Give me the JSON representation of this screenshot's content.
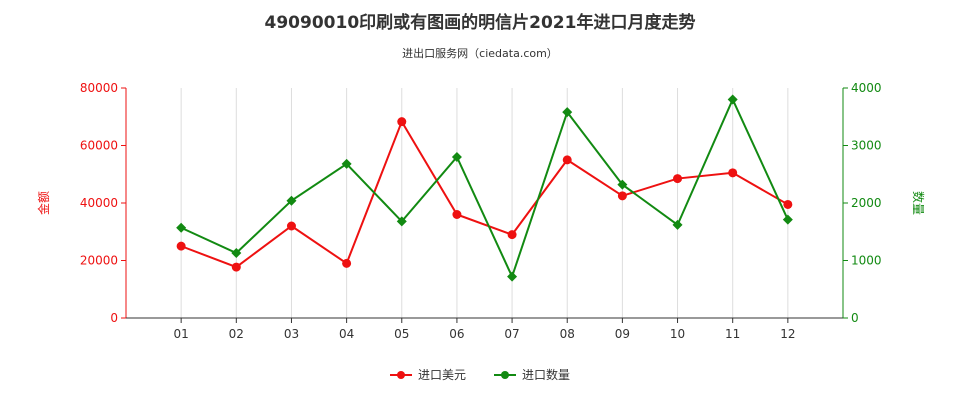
{
  "title": "49090010印刷或有图画的明信片2021年进口月度走势",
  "subtitle": "进出口服务网（ciedata.com）",
  "chart_data": {
    "type": "line",
    "categories": [
      "01",
      "02",
      "03",
      "04",
      "05",
      "06",
      "07",
      "08",
      "09",
      "10",
      "11",
      "12"
    ],
    "ylabel_left": "金额",
    "ylabel_right": "数量",
    "ylim_left": [
      0,
      80000
    ],
    "ylim_right": [
      0,
      4000
    ],
    "yticks_left": [
      0,
      20000,
      40000,
      60000,
      80000
    ],
    "yticks_right": [
      0,
      1000,
      2000,
      3000,
      4000
    ],
    "grid": "vertical",
    "legend_position": "bottom",
    "series": [
      {
        "name": "进口美元",
        "axis": "left",
        "color": "#ee1111",
        "values": [
          25000,
          17700,
          32000,
          19000,
          68300,
          36000,
          29000,
          55000,
          42500,
          48500,
          50500,
          39500
        ]
      },
      {
        "name": "进口数量",
        "axis": "right",
        "color": "#128a12",
        "values": [
          1570,
          1130,
          2040,
          2680,
          1680,
          2800,
          720,
          3580,
          2320,
          1620,
          3800,
          1710
        ]
      }
    ]
  }
}
